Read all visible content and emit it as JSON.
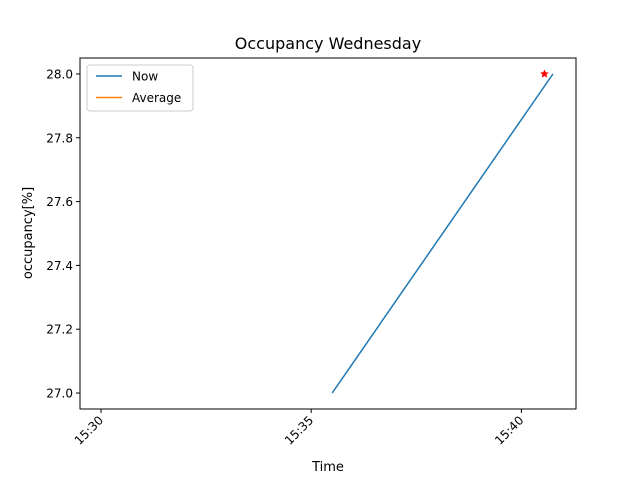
{
  "chart_data": {
    "type": "line",
    "title": "Occupancy Wednesday",
    "xlabel": "Time",
    "ylabel": "occupancy[%]",
    "xlim": [
      "15:29.5",
      "15:41.3"
    ],
    "ylim": [
      26.95,
      28.05
    ],
    "x_ticks": [
      "15:30",
      "15:35",
      "15:40"
    ],
    "y_ticks": [
      "27.0",
      "27.2",
      "27.4",
      "27.6",
      "27.8",
      "28.0"
    ],
    "series": [
      {
        "name": "Now",
        "color": "#1f77b4",
        "points": [
          {
            "x": "15:35:30",
            "y": 27.0
          },
          {
            "x": "15:40:45",
            "y": 28.0
          }
        ]
      },
      {
        "name": "Average",
        "color": "#ff7f0e",
        "points": []
      }
    ],
    "marker": {
      "shape": "star",
      "color": "#ff0000",
      "x": "15:40:33",
      "y": 28.0
    },
    "legend": {
      "position": "top-left",
      "entries": [
        "Now",
        "Average"
      ]
    },
    "grid": false
  }
}
